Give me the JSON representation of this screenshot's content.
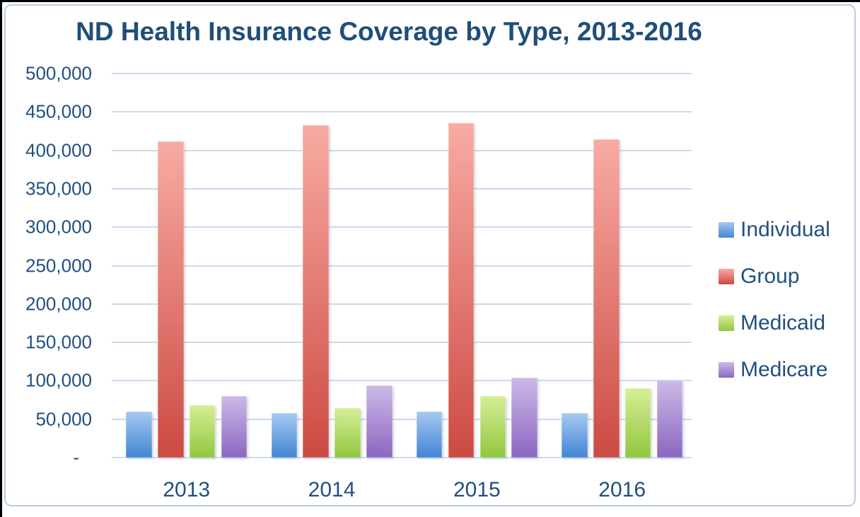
{
  "chart_data": {
    "type": "bar",
    "title": "ND Health Insurance Coverage by Type, 2013-2016",
    "categories": [
      "2013",
      "2014",
      "2015",
      "2016"
    ],
    "series": [
      {
        "name": "Individual",
        "color_top": "#A6C9F1",
        "color_bottom": "#4284D4",
        "values": [
          60000,
          58000,
          60000,
          58000
        ]
      },
      {
        "name": "Group",
        "color_top": "#F8ABA3",
        "color_bottom": "#CC4A42",
        "values": [
          412000,
          433000,
          436000,
          414000
        ]
      },
      {
        "name": "Medicaid",
        "color_top": "#D6EE96",
        "color_bottom": "#90C73E",
        "values": [
          68000,
          64000,
          80000,
          90000
        ]
      },
      {
        "name": "Medicare",
        "color_top": "#CDB9E8",
        "color_bottom": "#8A67C0",
        "values": [
          80000,
          94000,
          104000,
          100000
        ]
      }
    ],
    "ylim": [
      0,
      500000
    ],
    "ytick_interval": 50000,
    "ytick_labels": [
      "500,000",
      "450,000",
      "400,000",
      "350,000",
      "300,000",
      "250,000",
      "200,000",
      "150,000",
      "100,000",
      "50,000",
      "-"
    ],
    "xlabel": "",
    "ylabel": "",
    "grid": true,
    "legend_position": "right",
    "legend_entries": [
      "Individual",
      "Group",
      "Medicaid",
      "Medicare"
    ]
  },
  "styles": {
    "title_color": "#1F4E79",
    "axis_label_color": "#21507F",
    "gridline_color": "#CBDAF0",
    "frame_border_color": "#B9CDE5",
    "outer_edge_color": "#000000"
  }
}
